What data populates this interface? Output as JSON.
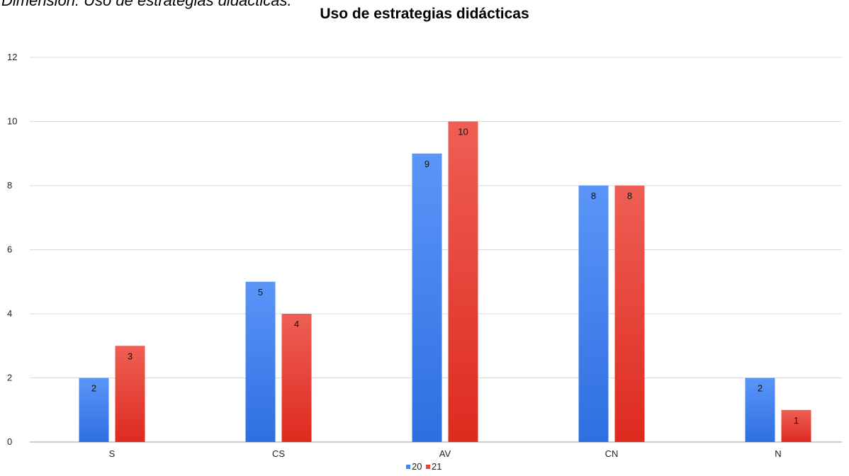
{
  "caption": "Dimensión: Uso de estrategias didácticas.",
  "chart_data": {
    "type": "bar",
    "title": "Uso de estrategias didácticas",
    "xlabel": "",
    "ylabel": "",
    "categories": [
      "S",
      "CS",
      "AV",
      "CN",
      "N"
    ],
    "series": [
      {
        "name": "20",
        "values": [
          2,
          5,
          9,
          8,
          2
        ]
      },
      {
        "name": "21",
        "values": [
          3,
          4,
          10,
          8,
          1
        ]
      }
    ],
    "ylim": [
      0,
      12
    ],
    "yticks": [
      0,
      2,
      4,
      6,
      8,
      10,
      12
    ],
    "grid": true,
    "legend_position": "bottom",
    "colors": [
      "#4285F4",
      "#EA4335"
    ]
  }
}
